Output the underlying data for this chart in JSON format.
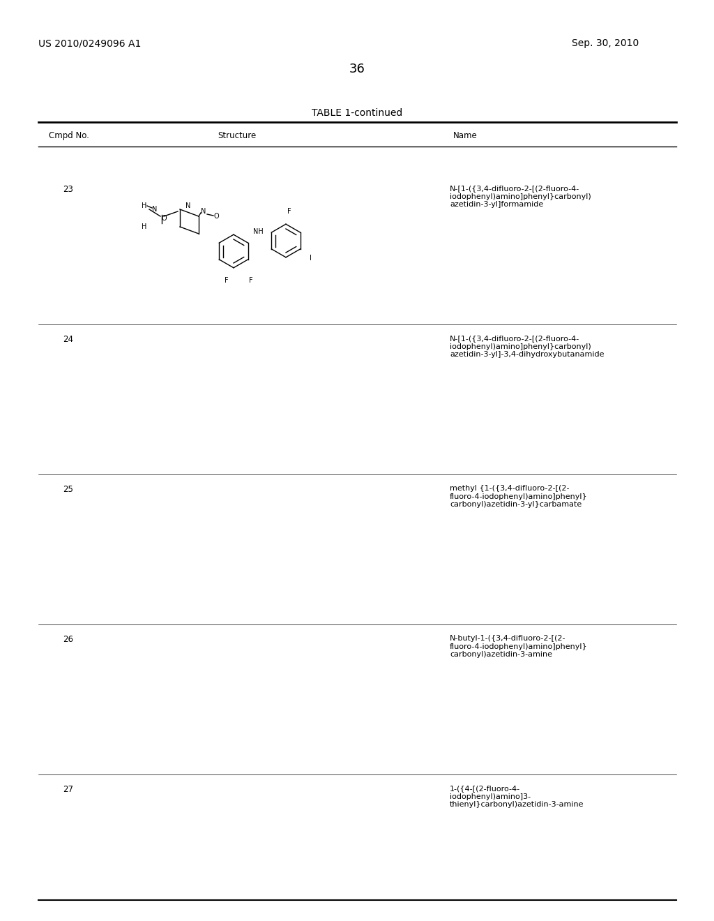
{
  "page_number": "36",
  "patent_number": "US 2010/0249096 A1",
  "patent_date": "Sep. 30, 2010",
  "table_title": "TABLE 1-continued",
  "columns": [
    "Cmpd No.",
    "Structure",
    "Name"
  ],
  "compounds": [
    {
      "number": "23",
      "name": "N-[1-({3,4-difluoro-2-[(2-fluoro-4-\niodophenyl)amino]phenyl}carbonyl)\nazetidin-3-yl]formamide"
    },
    {
      "number": "24",
      "name": "N-[1-({3,4-difluoro-2-[(2-fluoro-4-\niodophenyl)amino]phenyl}carbonyl)\nazetidin-3-yl]-3,4-dihydroxybutanamide"
    },
    {
      "number": "25",
      "name": "methyl {1-({3,4-difluoro-2-[(2-\nfluoro-4-iodophenyl)amino]phenyl}\ncarbonyl)azetidin-3-yl}carbamate"
    },
    {
      "number": "26",
      "name": "N-butyl-1-({3,4-difluoro-2-[(2-\nfluoro-4-iodophenyl)amino]phenyl}\ncarbonyl)azetidin-3-amine"
    },
    {
      "number": "27",
      "name": "1-({4-[(2-fluoro-4-\niodophenyl)amino]3-\nthienyl}carbonyl)azetidin-3-amine"
    }
  ],
  "bg_color": "#ffffff",
  "text_color": "#000000",
  "line_color": "#000000",
  "font_size_header": 9,
  "font_size_body": 8,
  "font_size_title": 10,
  "font_size_page": 11
}
